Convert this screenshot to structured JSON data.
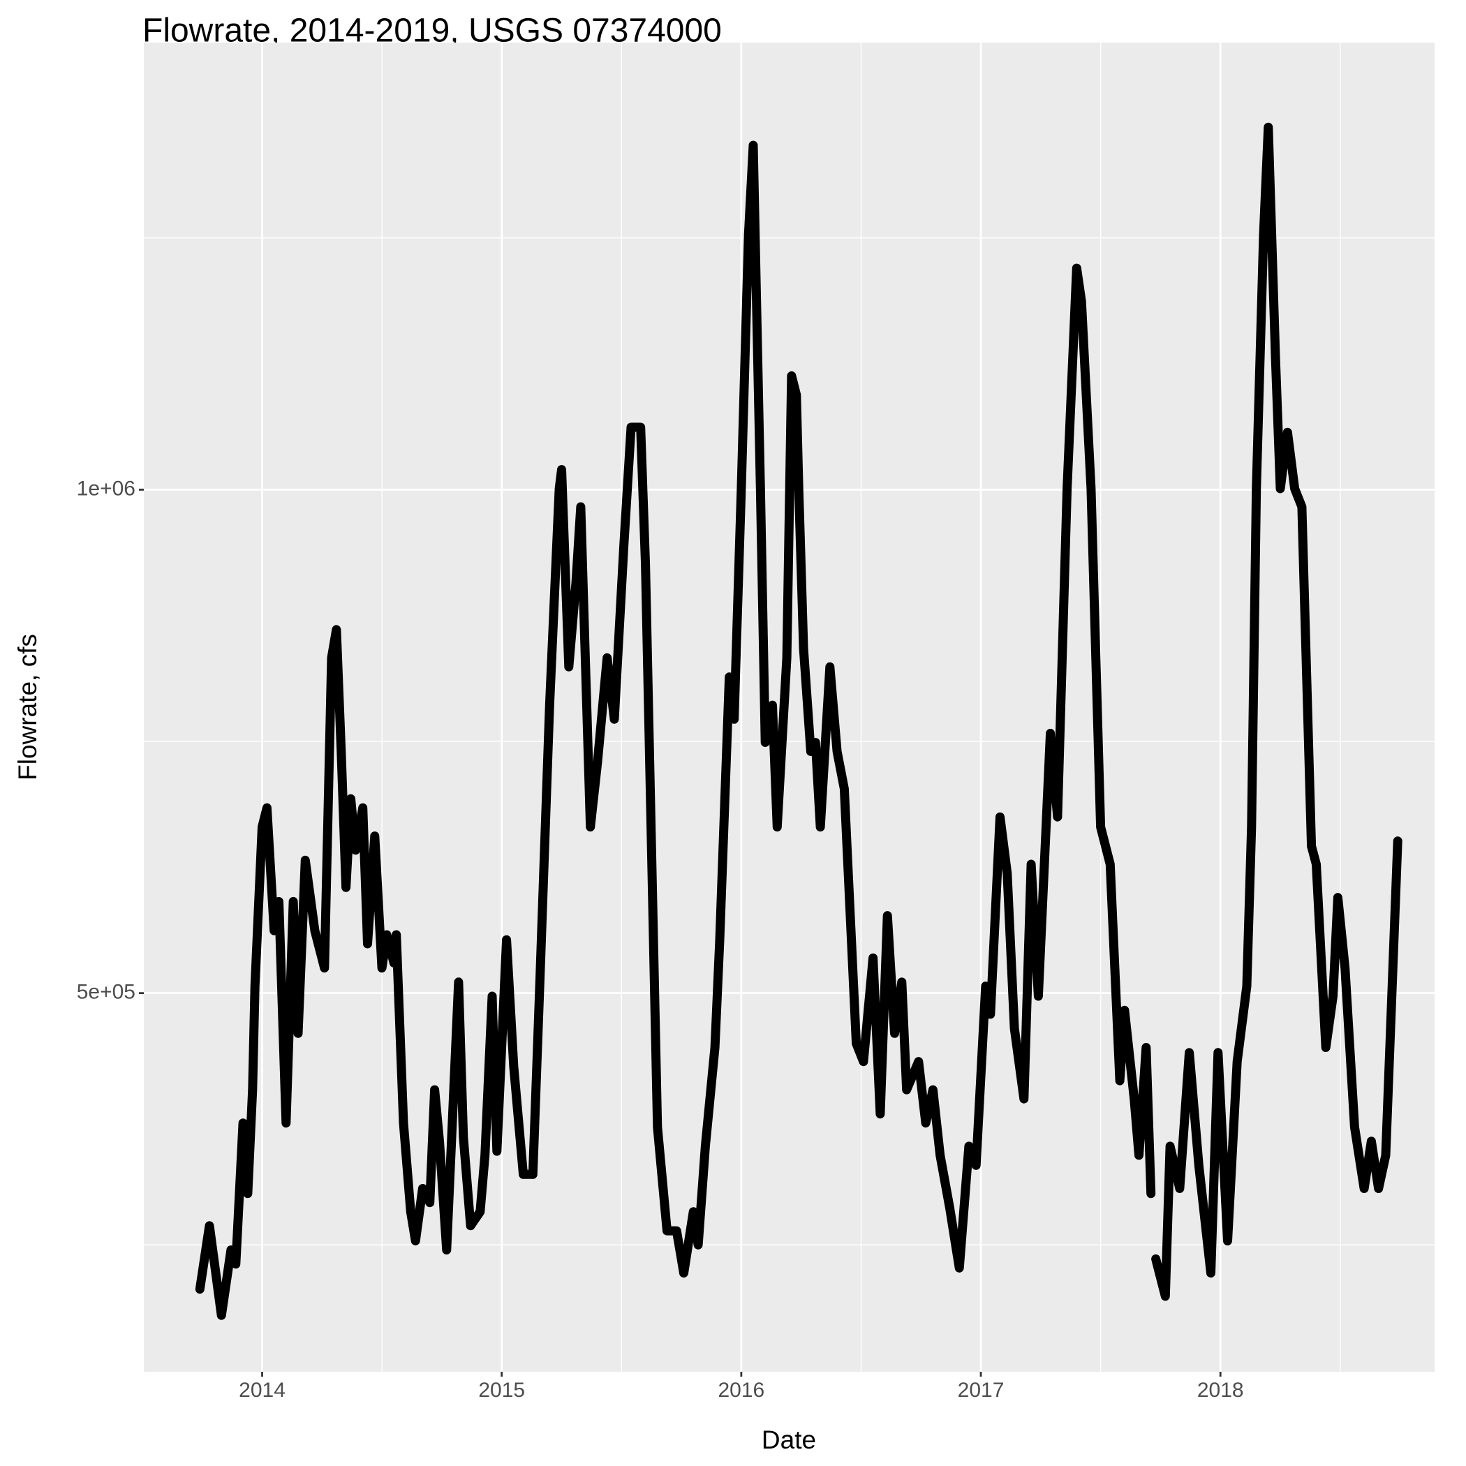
{
  "chart_data": {
    "type": "line",
    "title": "Flowrate, 2014-2019, USGS 07374000",
    "x_label": "Date",
    "y_label": "Flowrate, cfs",
    "color": "#000000",
    "grid": true,
    "xlim": [
      2013.506,
      2018.894
    ],
    "ylim": [
      124000,
      1444000
    ],
    "xticks": [
      2014,
      2015,
      2016,
      2017,
      2018
    ],
    "x_minor_ticks": [
      2013.5,
      2014.5,
      2015.5,
      2016.5,
      2017.5,
      2018.5
    ],
    "yticks": [
      {
        "value": 500000,
        "label": "5e+05"
      },
      {
        "value": 1000000,
        "label": "1e+06"
      }
    ],
    "y_minor_ticks": [
      250000,
      750000,
      1250000
    ],
    "x": [
      2013.74,
      2013.78,
      2013.83,
      2013.87,
      2013.89,
      2013.92,
      2013.94,
      2013.96,
      2013.97,
      2014.0,
      2014.02,
      2014.05,
      2014.07,
      2014.1,
      2014.13,
      2014.15,
      2014.18,
      2014.22,
      2014.26,
      2014.29,
      2014.31,
      2014.33,
      2014.35,
      2014.37,
      2014.39,
      2014.42,
      2014.44,
      2014.47,
      2014.5,
      2014.52,
      2014.55,
      2014.56,
      2014.59,
      2014.62,
      2014.64,
      2014.67,
      2014.7,
      2014.72,
      2014.74,
      2014.77,
      2014.82,
      2014.84,
      2014.87,
      2014.91,
      2014.93,
      2014.96,
      2014.98,
      2015.02,
      2015.05,
      2015.09,
      2015.13,
      2015.16,
      2015.2,
      2015.24,
      2015.25,
      2015.28,
      2015.31,
      2015.33,
      2015.37,
      2015.4,
      2015.44,
      2015.47,
      2015.51,
      2015.54,
      2015.58,
      2015.6,
      2015.65,
      2015.69,
      2015.73,
      2015.76,
      2015.8,
      2015.82,
      2015.85,
      2015.89,
      2015.91,
      2015.95,
      2015.97,
      2016.0,
      2016.03,
      2016.05,
      2016.08,
      2016.1,
      2016.13,
      2016.15,
      2016.19,
      2016.21,
      2016.23,
      2016.24,
      2016.26,
      2016.29,
      2016.31,
      2016.33,
      2016.37,
      2016.4,
      2016.43,
      2016.48,
      2016.51,
      2016.55,
      2016.58,
      2016.61,
      2016.64,
      2016.67,
      2016.69,
      2016.74,
      2016.77,
      2016.8,
      2016.83,
      2016.87,
      2016.91,
      2016.95,
      2016.98,
      2017.02,
      2017.04,
      2017.08,
      2017.11,
      2017.14,
      2017.18,
      2017.21,
      2017.24,
      2017.29,
      2017.32,
      2017.36,
      2017.4,
      2017.42,
      2017.46,
      2017.5,
      2017.54,
      2017.58,
      2017.6,
      2017.64,
      2017.66,
      2017.69,
      2017.71,
      2017.72,
      2017.73,
      2017.77,
      2017.79,
      2017.83,
      2017.87,
      2017.91,
      2017.96,
      2017.99,
      2018.03,
      2018.07,
      2018.11,
      2018.13,
      2018.15,
      2018.18,
      2018.2,
      2018.23,
      2018.25,
      2018.28,
      2018.31,
      2018.34,
      2018.38,
      2018.4,
      2018.44,
      2018.47,
      2018.49,
      2018.52,
      2018.56,
      2018.6,
      2018.63,
      2018.66,
      2018.69,
      2018.74
    ],
    "values": [
      206000,
      269000,
      180000,
      245000,
      231000,
      371000,
      301000,
      404000,
      507000,
      665000,
      684000,
      562000,
      591000,
      371000,
      591000,
      460000,
      632000,
      562000,
      525000,
      833000,
      861000,
      740000,
      605000,
      693000,
      642000,
      684000,
      549000,
      656000,
      525000,
      558000,
      530000,
      558000,
      371000,
      283000,
      254000,
      306000,
      292000,
      404000,
      353000,
      245000,
      511000,
      357000,
      269000,
      283000,
      339000,
      497000,
      343000,
      553000,
      427000,
      320000,
      320000,
      516000,
      786000,
      1001000,
      1020000,
      824000,
      908000,
      983000,
      665000,
      730000,
      833000,
      772000,
      945000,
      1062000,
      1062000,
      926000,
      367000,
      264000,
      264000,
      222000,
      283000,
      250000,
      348000,
      446000,
      553000,
      814000,
      772000,
      1001000,
      1253000,
      1342000,
      1001000,
      749000,
      786000,
      665000,
      833000,
      1113000,
      1094000,
      1001000,
      842000,
      740000,
      749000,
      665000,
      824000,
      740000,
      703000,
      450000,
      432000,
      535000,
      380000,
      577000,
      460000,
      511000,
      404000,
      432000,
      371000,
      404000,
      339000,
      287000,
      227000,
      348000,
      329000,
      507000,
      479000,
      675000,
      619000,
      465000,
      395000,
      628000,
      497000,
      758000,
      675000,
      1001000,
      1220000,
      1187000,
      1001000,
      665000,
      628000,
      413000,
      483000,
      395000,
      339000,
      446000,
      301000,
      null,
      236000,
      199000,
      348000,
      306000,
      441000,
      329000,
      222000,
      441000,
      254000,
      432000,
      507000,
      665000,
      1001000,
      1253000,
      1360000,
      1131000,
      1001000,
      1057000,
      1001000,
      983000,
      646000,
      628000,
      446000,
      497000,
      595000,
      525000,
      367000,
      306000,
      353000,
      306000,
      339000,
      651000
    ]
  }
}
